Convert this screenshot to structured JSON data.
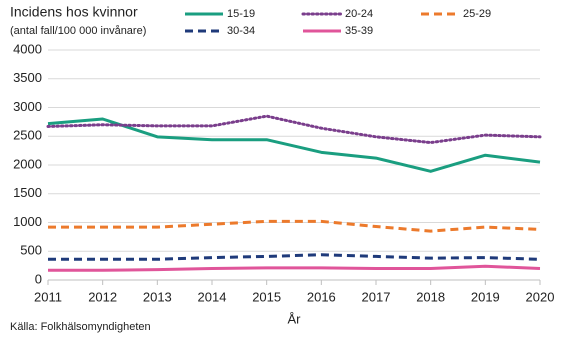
{
  "chart_data": {
    "type": "line",
    "title": "Incidens hos kvinnor",
    "subtitle": "(antal fall/100 000 invånare)",
    "x_label": "År",
    "source": "Källa: Folkhälsomyndigheten",
    "x": [
      2011,
      2012,
      2013,
      2014,
      2015,
      2016,
      2017,
      2018,
      2019,
      2020
    ],
    "xlim": [
      2011,
      2020
    ],
    "xticks": [
      2011,
      2012,
      2013,
      2014,
      2015,
      2016,
      2017,
      2018,
      2019,
      2020
    ],
    "ylim": [
      0,
      4000
    ],
    "yticks": [
      0,
      500,
      1000,
      1500,
      2000,
      2500,
      3000,
      3500,
      4000
    ],
    "grid": true,
    "series": [
      {
        "name": "15-19",
        "color": "#1a9e80",
        "dash": "solid",
        "values": [
          2720,
          2800,
          2490,
          2440,
          2440,
          2220,
          2120,
          1890,
          2170,
          2050
        ]
      },
      {
        "name": "20-24",
        "color": "#7a3e8c",
        "dash": "dotted",
        "values": [
          2670,
          2700,
          2680,
          2680,
          2850,
          2640,
          2490,
          2390,
          2520,
          2490
        ]
      },
      {
        "name": "25-29",
        "color": "#ec7a2c",
        "dash": "dashed",
        "values": [
          920,
          920,
          920,
          970,
          1020,
          1020,
          930,
          850,
          920,
          880
        ]
      },
      {
        "name": "30-34",
        "color": "#1f3a7a",
        "dash": "dashed",
        "values": [
          360,
          360,
          360,
          390,
          410,
          440,
          410,
          380,
          390,
          360
        ]
      },
      {
        "name": "35-39",
        "color": "#e0559a",
        "dash": "solid",
        "values": [
          170,
          170,
          180,
          200,
          210,
          210,
          200,
          200,
          240,
          200
        ]
      }
    ]
  }
}
